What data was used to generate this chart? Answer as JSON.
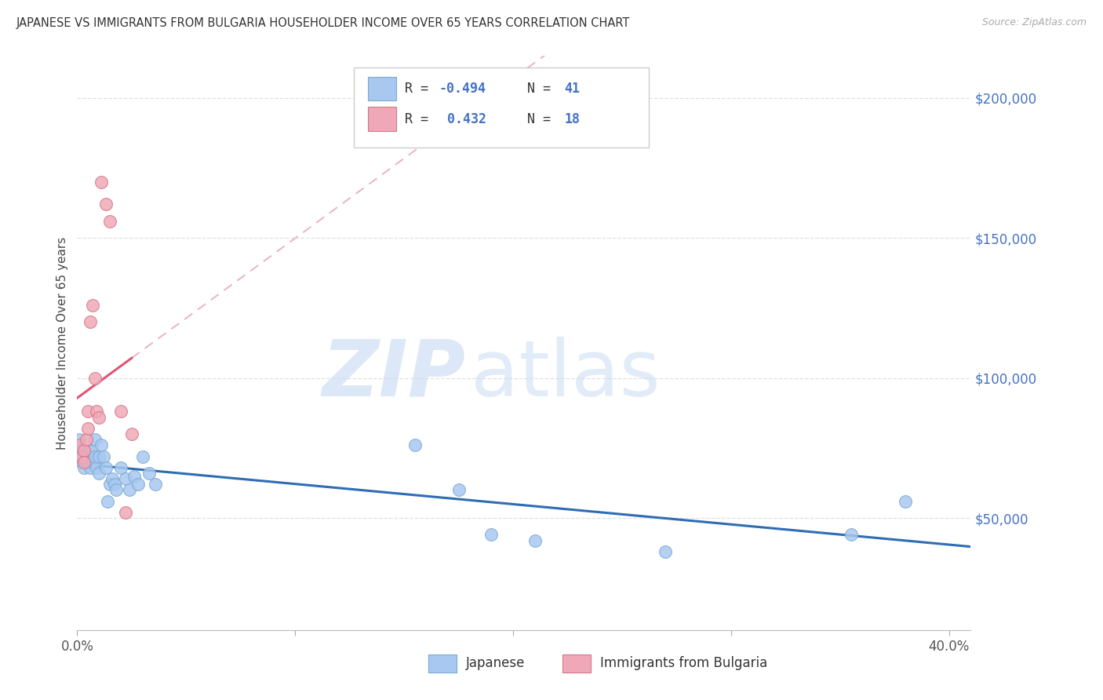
{
  "title": "JAPANESE VS IMMIGRANTS FROM BULGARIA HOUSEHOLDER INCOME OVER 65 YEARS CORRELATION CHART",
  "source": "Source: ZipAtlas.com",
  "ylabel": "Householder Income Over 65 years",
  "xlim": [
    0.0,
    0.41
  ],
  "ylim": [
    10000,
    215000
  ],
  "R_japanese": -0.494,
  "N_japanese": 41,
  "R_bulgaria": 0.432,
  "N_bulgaria": 18,
  "japanese_x": [
    0.001,
    0.002,
    0.002,
    0.003,
    0.003,
    0.004,
    0.004,
    0.005,
    0.005,
    0.006,
    0.006,
    0.007,
    0.007,
    0.008,
    0.008,
    0.009,
    0.01,
    0.01,
    0.011,
    0.012,
    0.013,
    0.014,
    0.015,
    0.016,
    0.017,
    0.018,
    0.02,
    0.022,
    0.024,
    0.026,
    0.028,
    0.03,
    0.033,
    0.036,
    0.155,
    0.175,
    0.19,
    0.21,
    0.27,
    0.355,
    0.38
  ],
  "japanese_y": [
    78000,
    74000,
    70000,
    72000,
    68000,
    73000,
    70000,
    74000,
    70000,
    72000,
    68000,
    74000,
    70000,
    78000,
    72000,
    68000,
    72000,
    66000,
    76000,
    72000,
    68000,
    56000,
    62000,
    64000,
    62000,
    60000,
    68000,
    64000,
    60000,
    65000,
    62000,
    72000,
    66000,
    62000,
    76000,
    60000,
    44000,
    42000,
    38000,
    44000,
    56000
  ],
  "bulgaria_x": [
    0.001,
    0.002,
    0.003,
    0.003,
    0.004,
    0.005,
    0.005,
    0.006,
    0.007,
    0.008,
    0.009,
    0.01,
    0.011,
    0.013,
    0.015,
    0.02,
    0.022,
    0.025
  ],
  "bulgaria_y": [
    76000,
    72000,
    74000,
    70000,
    78000,
    82000,
    88000,
    120000,
    126000,
    100000,
    88000,
    86000,
    170000,
    162000,
    156000,
    88000,
    52000,
    80000
  ],
  "watermark_zip": "ZIP",
  "watermark_atlas": "atlas",
  "japanese_color": "#a8c8f0",
  "japanese_edge": "#7aaad0",
  "bulgaria_color": "#f0a8b8",
  "bulgaria_edge": "#d07888",
  "blue_line_color": "#2e6db4",
  "pink_line_color": "#e05575",
  "pink_dashed_color": "#e8b0be",
  "background_color": "#ffffff",
  "grid_color": "#e0e0e0",
  "ytick_vals": [
    50000,
    100000,
    150000,
    200000
  ],
  "ytick_labels": [
    "$50,000",
    "$100,000",
    "$150,000",
    "$200,000"
  ],
  "xtick_vals": [
    0.0,
    0.1,
    0.2,
    0.3,
    0.4
  ],
  "xtick_labels": [
    "0.0%",
    "",
    "",
    "",
    "40.0%"
  ]
}
